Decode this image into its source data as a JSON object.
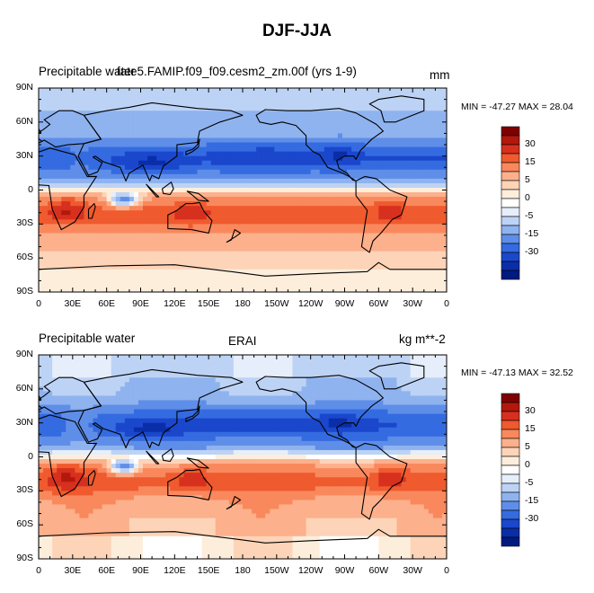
{
  "title": "DJF-JJA",
  "panels": [
    {
      "left_label_1": "Precipitable water",
      "left_label_2": "fate5.FAMIP.f09_f09.cesm2_zm.00f (yrs 1-9)",
      "center_label": "",
      "right_label": "mm",
      "stats": "MIN = -47.27 MAX =  28.04"
    },
    {
      "left_label_1": "Precipitable water",
      "left_label_2": "",
      "center_label": "ERAI",
      "right_label": "kg m**-2",
      "stats": "MIN = -47.13 MAX =  32.52"
    }
  ],
  "lat_ticks": [
    "90N",
    "60N",
    "30N",
    "0",
    "30S",
    "60S",
    "90S"
  ],
  "lon_ticks": [
    "0",
    "30E",
    "60E",
    "90E",
    "120E",
    "150E",
    "180",
    "150W",
    "120W",
    "90W",
    "60W",
    "30W",
    "0"
  ],
  "colorbar": {
    "labels": [
      "30",
      "15",
      "5",
      "0",
      "-5",
      "-15",
      "-30"
    ],
    "colors": [
      "#7f0000",
      "#b2180c",
      "#d7301f",
      "#ef5a2e",
      "#f9885d",
      "#fcb08c",
      "#fdd4b8",
      "#fdeedc",
      "#ffffff",
      "#e6eefb",
      "#bdd3f5",
      "#8fb3ef",
      "#5f8ee8",
      "#356be0",
      "#1a47cc",
      "#0a2ea8",
      "#001a80"
    ]
  }
}
